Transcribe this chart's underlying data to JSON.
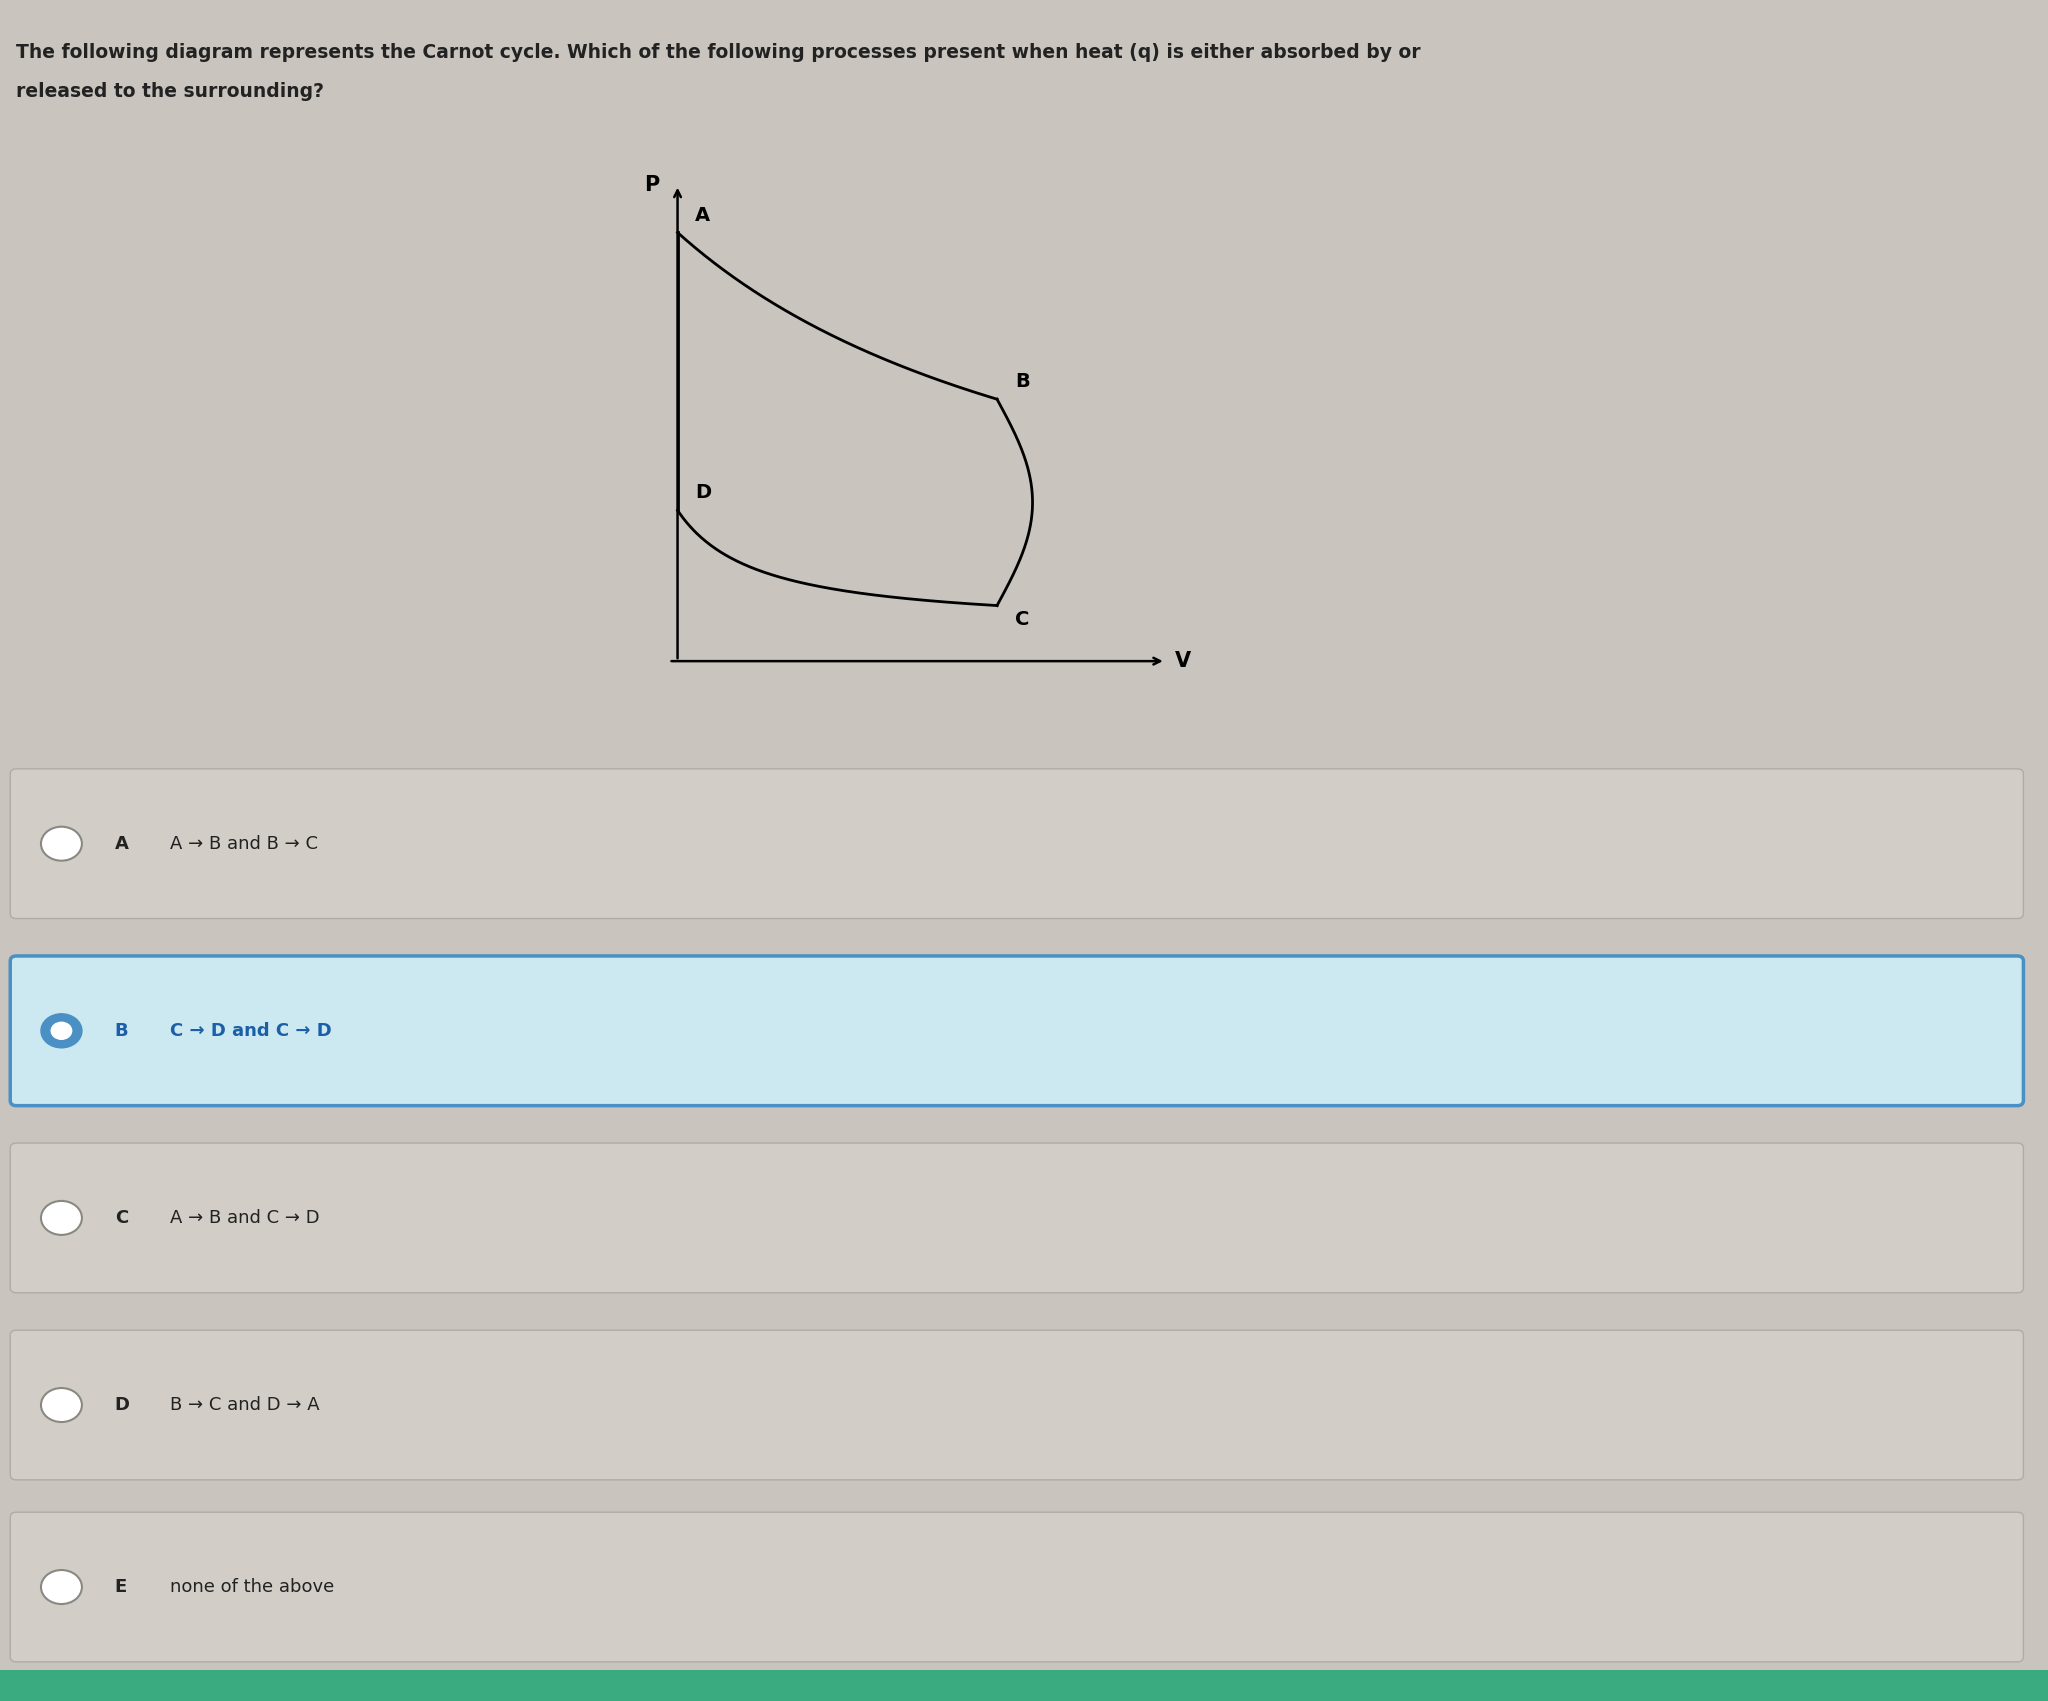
{
  "title_line1": "The following diagram represents the Carnot cycle. Which of the following processes present when heat (q) is either absorbed by or",
  "title_line2": "released to the surrounding?",
  "bg_color": "#c9c5be",
  "options": [
    {
      "label": "A",
      "text": "A → B and B → C",
      "selected": false
    },
    {
      "label": "B",
      "text": "C → D and C → D",
      "selected": true
    },
    {
      "label": "C",
      "text": "A → B and C → D",
      "selected": false
    },
    {
      "label": "D",
      "text": "B → C and D → A",
      "selected": false
    },
    {
      "label": "E",
      "text": "none of the above",
      "selected": false
    }
  ],
  "option_bg_unselected": "#d2cec7",
  "option_bg_selected": "#cce8f0",
  "option_border_selected": "#4a90c4",
  "option_border_unselected": "#b0aba4",
  "text_color": "#222222",
  "selected_text_color": "#1a5fa8",
  "bottom_bar_color": "#3aaa80",
  "diagram_bg": "#c9c5be"
}
